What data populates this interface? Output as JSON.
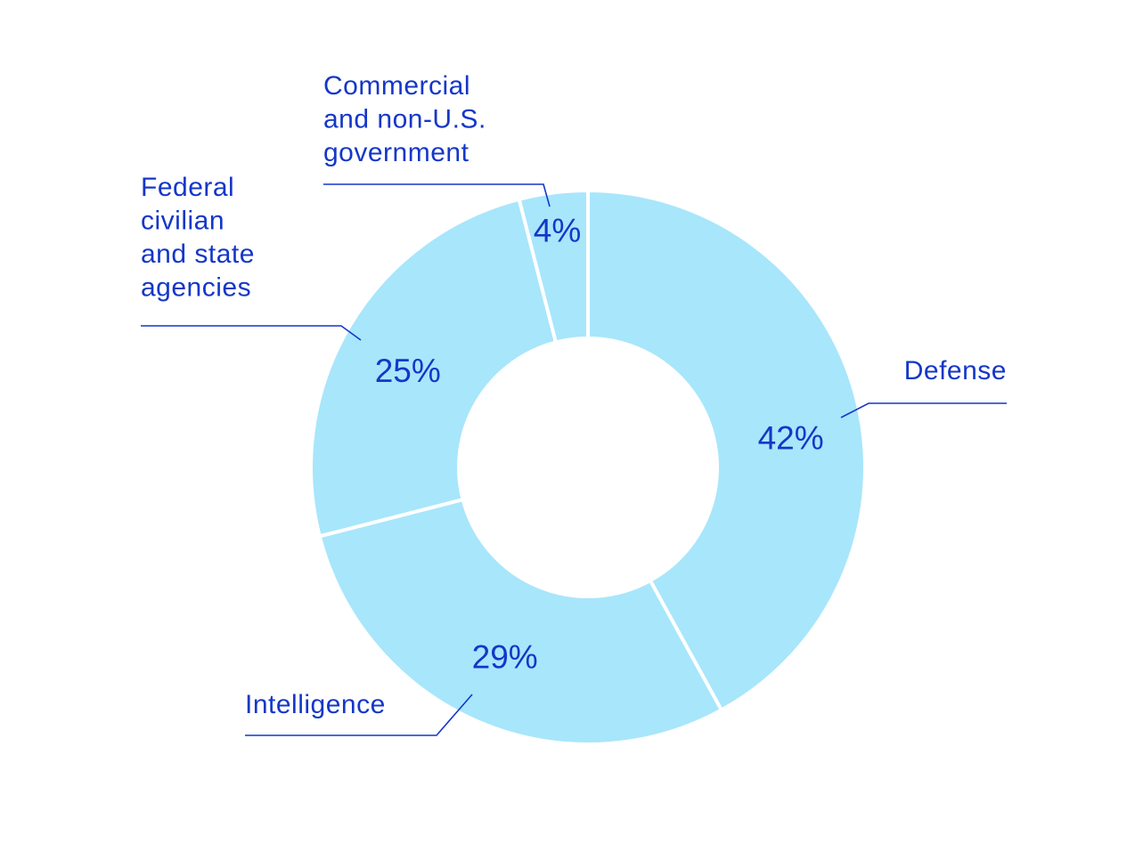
{
  "chart_data": {
    "type": "donut",
    "categories": [
      [
        "Defense"
      ],
      [
        "Intelligence"
      ],
      [
        "Federal",
        "civilian",
        "and state",
        "agencies"
      ],
      [
        "Commercial",
        "and non-U.S.",
        "government"
      ]
    ],
    "values": [
      42,
      29,
      25,
      4
    ],
    "value_labels": [
      "42%",
      "29%",
      "25%",
      "4%"
    ],
    "color": "#a8e6fb"
  }
}
